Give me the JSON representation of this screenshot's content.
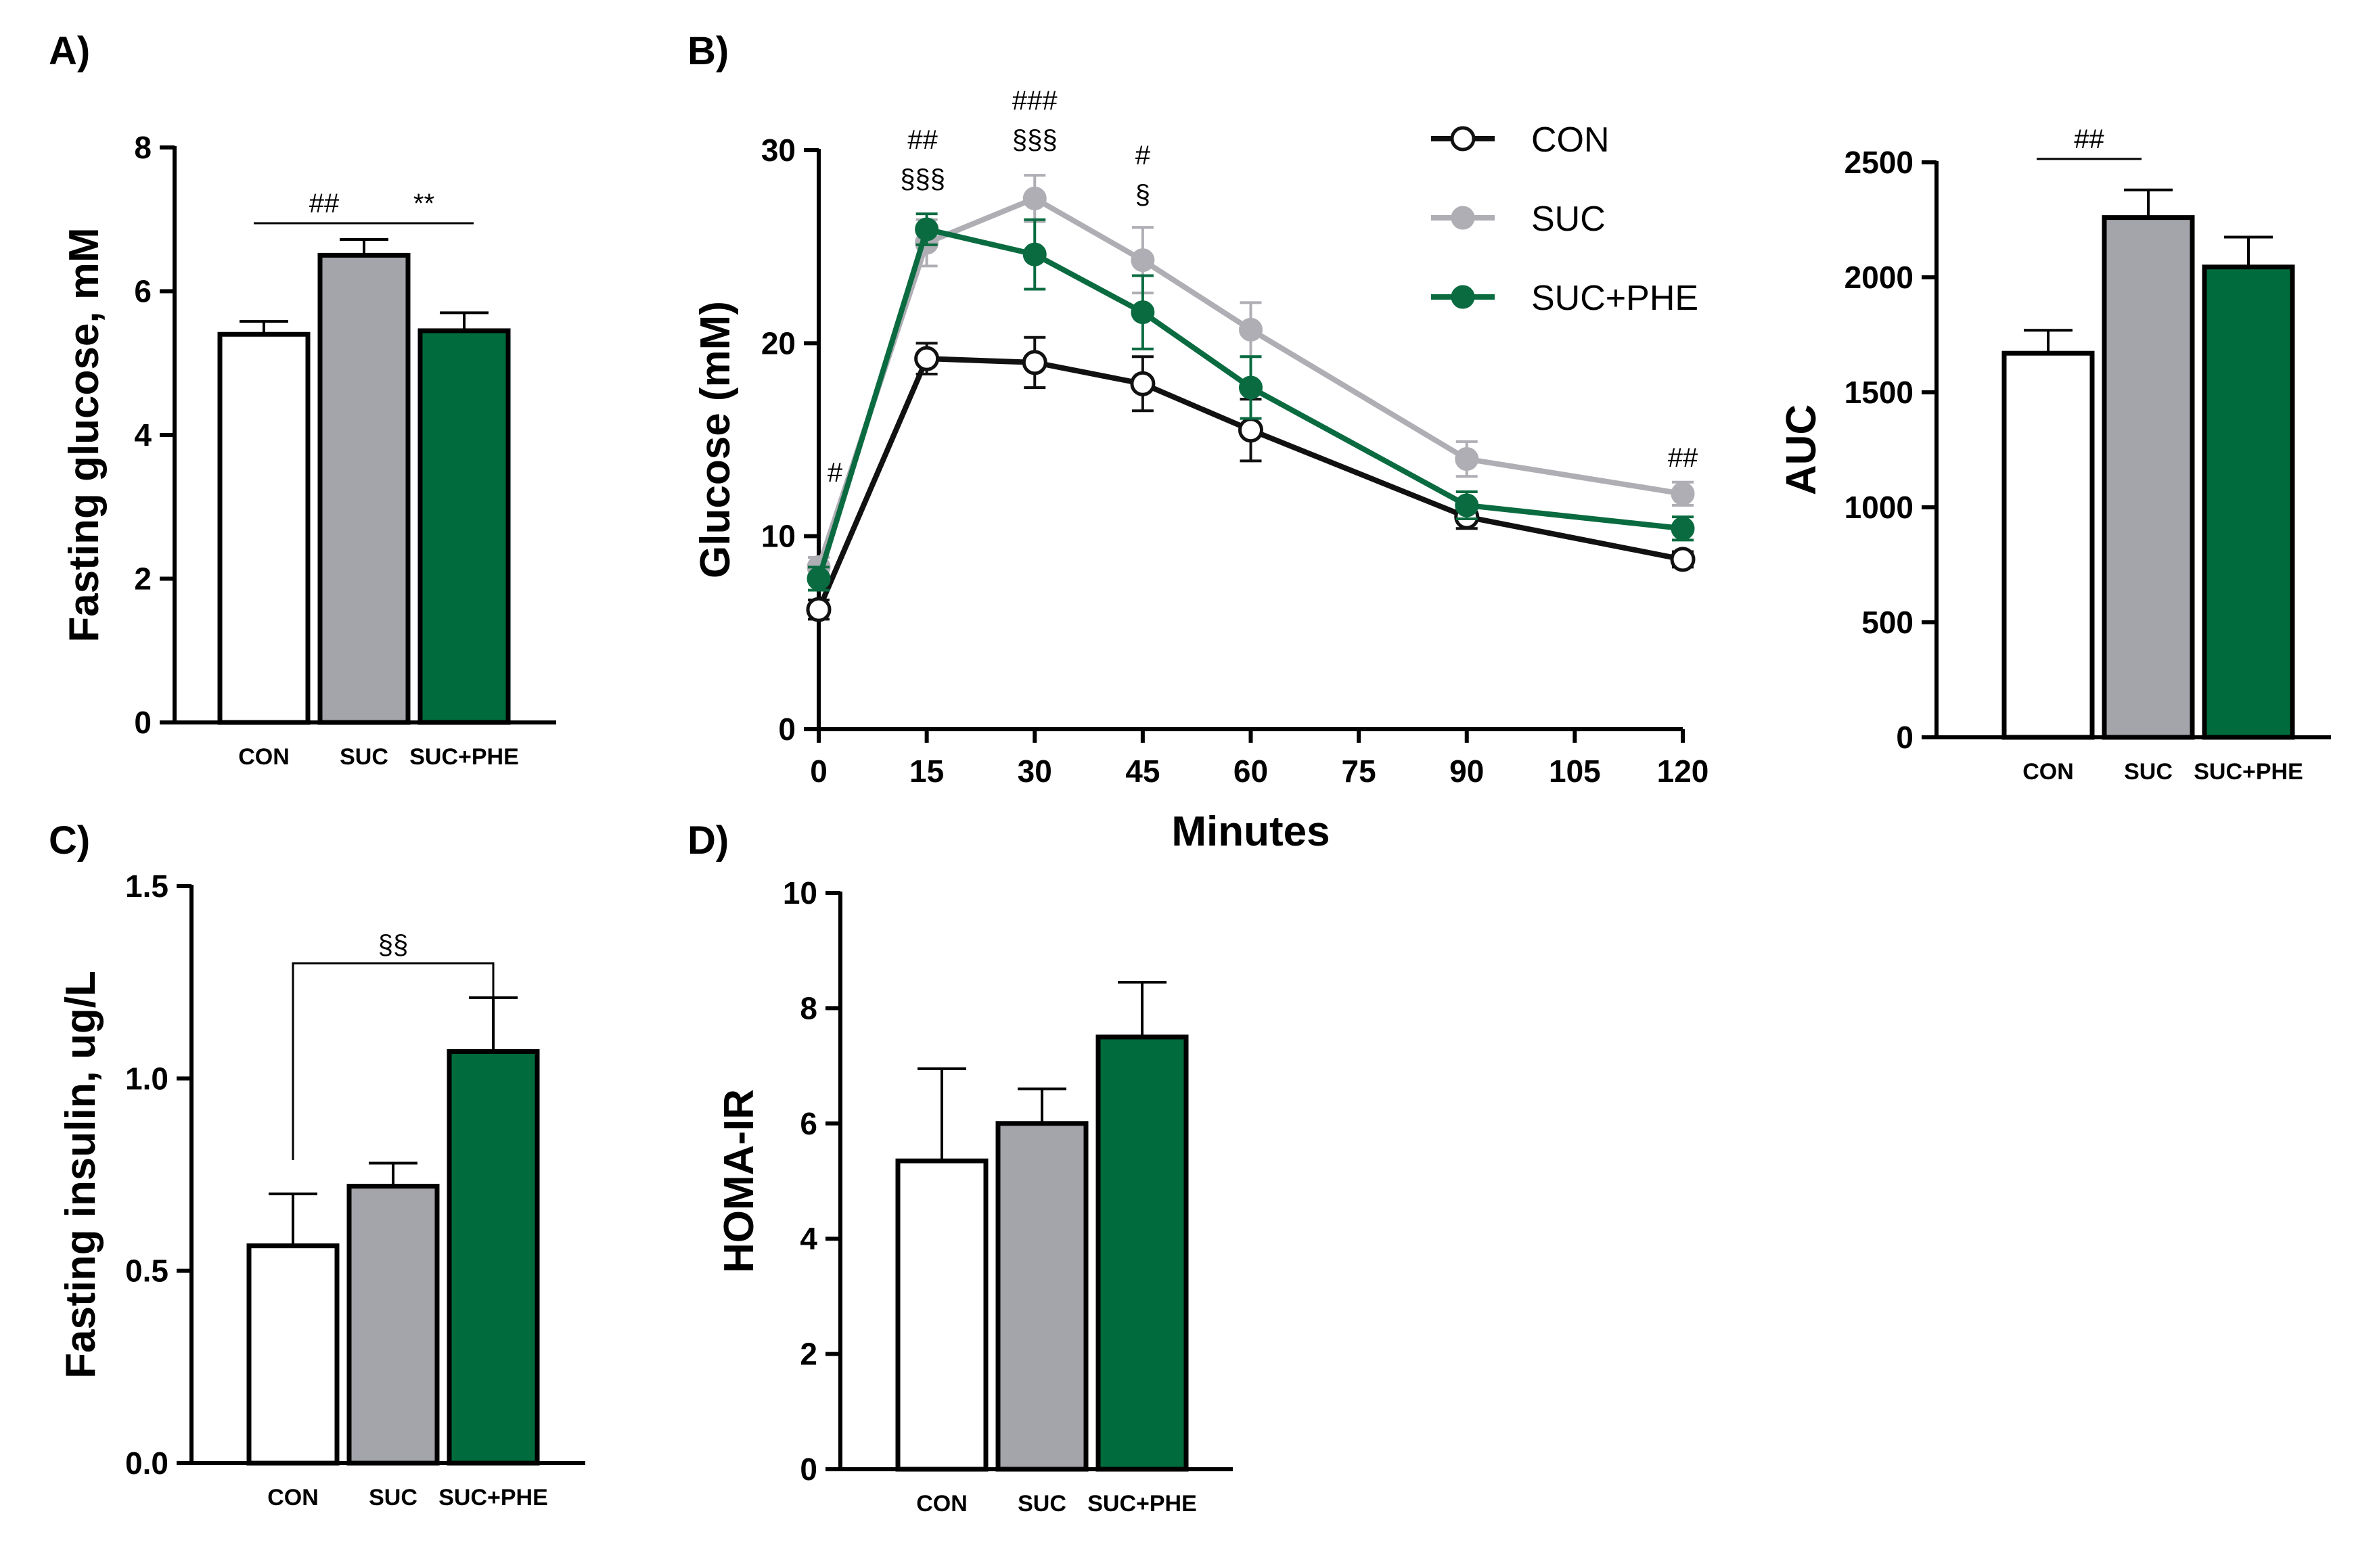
{
  "colors": {
    "con": "#ffffff",
    "suc": "#a4a4ab",
    "suc_phe": "#006b3c",
    "con_line": "#111111",
    "suc_line": "#aeaeb4",
    "suc_phe_line": "#0a6b40"
  },
  "chart_data": [
    {
      "id": "A",
      "panel_label": "A)",
      "type": "bar",
      "categories": [
        "CON",
        "SUC",
        "SUC+PHE"
      ],
      "values": [
        5.4,
        6.5,
        5.45
      ],
      "errors": [
        0.18,
        0.22,
        0.25
      ],
      "ylabel": "Fasting glucose, mM",
      "xlabel": "",
      "ylim": [
        0,
        8
      ],
      "yticks": [
        "0",
        "2",
        "4",
        "6",
        "8"
      ],
      "annotations": [
        {
          "text": "##",
          "between": [
            "CON",
            "SUC"
          ]
        },
        {
          "text": "**",
          "between": [
            "SUC",
            "SUC+PHE"
          ]
        }
      ]
    },
    {
      "id": "B",
      "panel_label": "B)",
      "type": "line",
      "x": [
        0,
        15,
        30,
        45,
        60,
        90,
        120
      ],
      "xticks": [
        "0",
        "15",
        "30",
        "45",
        "60",
        "75",
        "90",
        "105",
        "120"
      ],
      "xlabel": "Minutes",
      "ylabel": "Glucose (mM)",
      "ylim": [
        0,
        30
      ],
      "xlim": [
        0,
        120
      ],
      "yticks": [
        "0",
        "10",
        "20",
        "30"
      ],
      "legend_position": "top-right",
      "series": [
        {
          "name": "CON",
          "values": [
            6.2,
            19.2,
            19.0,
            17.9,
            15.5,
            11.0,
            8.8
          ],
          "errors": [
            0.5,
            0.8,
            1.3,
            1.4,
            1.6,
            0.6,
            0.4
          ]
        },
        {
          "name": "SUC",
          "values": [
            8.4,
            25.2,
            27.5,
            24.3,
            20.7,
            14.0,
            12.2
          ],
          "errors": [
            0.5,
            1.2,
            1.2,
            1.7,
            1.4,
            0.9,
            0.6
          ]
        },
        {
          "name": "SUC+PHE",
          "values": [
            7.8,
            25.9,
            24.6,
            21.6,
            17.7,
            11.6,
            10.4
          ],
          "errors": [
            0.6,
            0.8,
            1.8,
            1.9,
            1.6,
            0.7,
            0.6
          ]
        }
      ],
      "annotations": [
        {
          "x": 0,
          "lines": [
            "#"
          ]
        },
        {
          "x": 15,
          "lines": [
            "##",
            "§§§"
          ]
        },
        {
          "x": 30,
          "lines": [
            "###",
            "§§§"
          ]
        },
        {
          "x": 45,
          "lines": [
            "#",
            "§"
          ]
        },
        {
          "x": 120,
          "lines": [
            "##"
          ]
        }
      ]
    },
    {
      "id": "B2",
      "type": "bar",
      "categories": [
        "CON",
        "SUC",
        "SUC+PHE"
      ],
      "values": [
        1670,
        2260,
        2045
      ],
      "errors": [
        100,
        120,
        130
      ],
      "ylabel": "AUC",
      "xlabel": "",
      "ylim": [
        0,
        2500
      ],
      "yticks": [
        "0",
        "500",
        "1000",
        "1500",
        "2000",
        "2500"
      ],
      "annotations": [
        {
          "text": "##",
          "between": [
            "CON",
            "SUC"
          ]
        }
      ]
    },
    {
      "id": "C",
      "panel_label": "C)",
      "type": "bar",
      "categories": [
        "CON",
        "SUC",
        "SUC+PHE"
      ],
      "values": [
        0.565,
        0.72,
        1.07
      ],
      "errors": [
        0.135,
        0.06,
        0.14
      ],
      "ylabel": "Fasting insulin, ug/L",
      "xlabel": "",
      "ylim": [
        0,
        1.5
      ],
      "yticks": [
        "0.0",
        "0.5",
        "1.0",
        "1.5"
      ],
      "annotations": [
        {
          "text": "§§",
          "between": [
            "CON",
            "SUC+PHE"
          ]
        }
      ]
    },
    {
      "id": "D",
      "panel_label": "D)",
      "type": "bar",
      "categories": [
        "CON",
        "SUC",
        "SUC+PHE"
      ],
      "values": [
        5.35,
        6.0,
        7.5
      ],
      "errors": [
        1.6,
        0.6,
        0.95
      ],
      "ylabel": "HOMA-IR",
      "xlabel": "",
      "ylim": [
        0,
        10
      ],
      "yticks": [
        "0",
        "2",
        "4",
        "6",
        "8",
        "10"
      ],
      "annotations": []
    }
  ]
}
